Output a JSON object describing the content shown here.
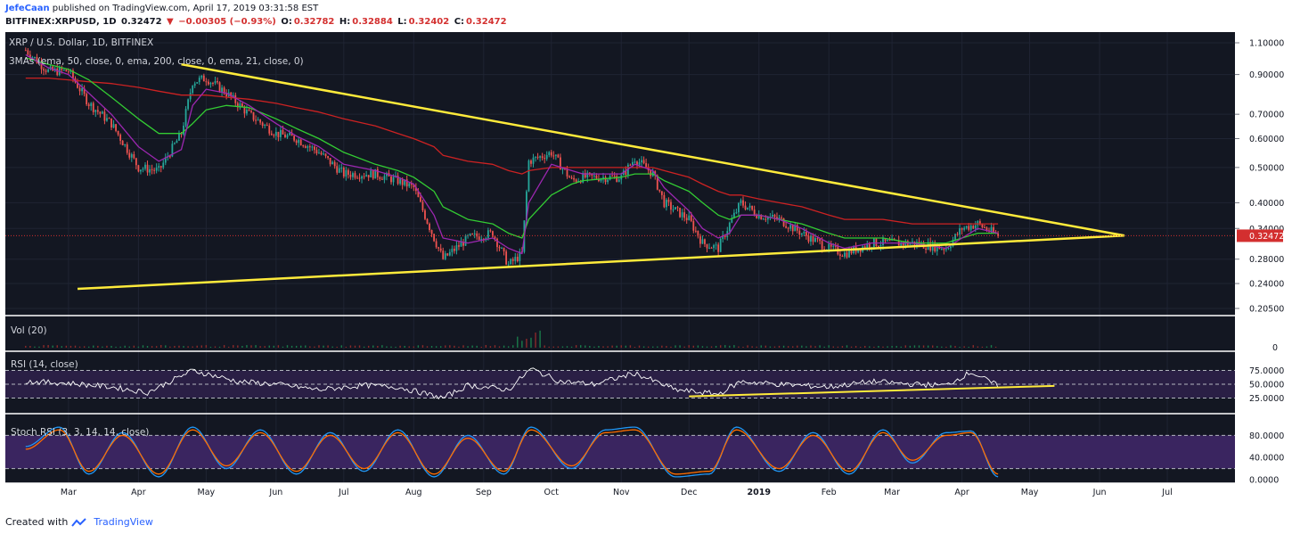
{
  "header": {
    "user": "JefeCaan",
    "published_text": "published on TradingView.com, April 17, 2019 03:31:58 EST",
    "symbol": "BITFINEX:XRPUSD, 1D",
    "last": "0.32472",
    "change_arrow": "▼",
    "change": "−0.00305 (−0.93%)",
    "o_label": "O:",
    "o_value": "0.32782",
    "h_label": "H:",
    "h_value": "0.32884",
    "l_label": "L:",
    "l_value": "0.32402",
    "c_label": "C:",
    "c_value": "0.32472"
  },
  "footer": {
    "created_with": "Created with",
    "brand": "TradingView"
  },
  "colors": {
    "background": "#131722",
    "rsi_band": "#2a1f45",
    "stoch_band": "#3a2560",
    "candle_up": "#26a69a",
    "candle_down": "#ef5350",
    "ema50": "#33cc33",
    "ema200": "#cc2222",
    "ema21": "#9c27b0",
    "trendline": "#ffeb3b",
    "rsi_line": "#ffffff",
    "stoch_k": "#2196f3",
    "stoch_d": "#ff6d00",
    "price_label": "#d32f2f"
  },
  "chart_data": {
    "type": "line",
    "price_pane": {
      "title": "XRP / U.S. Dollar, 1D, BITFINEX",
      "indicator_label": "3MAs (ema, 50, close, 0, ema, 200, close, 0, ema, 21, close, 0)",
      "scale": "log",
      "y_ticks": [
        "1.10000",
        "0.90000",
        "0.70000",
        "0.60000",
        "0.50000",
        "0.40000",
        "0.34000",
        "0.28000",
        "0.24000",
        "0.20500"
      ],
      "y_tick_values": [
        1.1,
        0.9,
        0.7,
        0.6,
        0.5,
        0.4,
        0.34,
        0.28,
        0.24,
        0.205
      ],
      "last_price_label": "0.32472",
      "last_price": 0.32472,
      "x_ticks": [
        "Mar",
        "Apr",
        "May",
        "Jun",
        "Jul",
        "Aug",
        "Sep",
        "Oct",
        "Nov",
        "Dec",
        "2019",
        "Feb",
        "Mar",
        "Apr",
        "May",
        "Jun",
        "Jul"
      ],
      "close_series": {
        "name": "XRPUSD close",
        "x": [
          "2018-02-10",
          "2018-02-20",
          "2018-03-01",
          "2018-03-10",
          "2018-03-20",
          "2018-04-01",
          "2018-04-10",
          "2018-04-20",
          "2018-04-25",
          "2018-05-01",
          "2018-05-10",
          "2018-05-20",
          "2018-06-01",
          "2018-06-10",
          "2018-06-20",
          "2018-07-01",
          "2018-07-15",
          "2018-07-25",
          "2018-08-01",
          "2018-08-10",
          "2018-08-14",
          "2018-08-25",
          "2018-09-05",
          "2018-09-12",
          "2018-09-18",
          "2018-09-21",
          "2018-10-01",
          "2018-10-10",
          "2018-10-15",
          "2018-11-01",
          "2018-11-07",
          "2018-11-15",
          "2018-11-20",
          "2018-12-01",
          "2018-12-07",
          "2018-12-14",
          "2018-12-19",
          "2018-12-24",
          "2019-01-01",
          "2019-01-10",
          "2019-01-20",
          "2019-02-01",
          "2019-02-08",
          "2019-02-20",
          "2019-02-25",
          "2019-03-10",
          "2019-03-25",
          "2019-04-01",
          "2019-04-08",
          "2019-04-17"
        ],
        "values": [
          1.05,
          0.92,
          0.92,
          0.75,
          0.66,
          0.5,
          0.49,
          0.62,
          0.86,
          0.88,
          0.8,
          0.7,
          0.62,
          0.6,
          0.55,
          0.48,
          0.48,
          0.46,
          0.44,
          0.32,
          0.28,
          0.32,
          0.33,
          0.27,
          0.29,
          0.52,
          0.55,
          0.46,
          0.47,
          0.47,
          0.53,
          0.48,
          0.4,
          0.36,
          0.31,
          0.3,
          0.35,
          0.4,
          0.37,
          0.36,
          0.33,
          0.3,
          0.29,
          0.31,
          0.31,
          0.31,
          0.3,
          0.34,
          0.35,
          0.32472
        ]
      },
      "ema50_values": [
        1.0,
        0.96,
        0.93,
        0.87,
        0.78,
        0.68,
        0.62,
        0.62,
        0.66,
        0.72,
        0.74,
        0.73,
        0.68,
        0.64,
        0.6,
        0.55,
        0.51,
        0.49,
        0.47,
        0.43,
        0.39,
        0.36,
        0.35,
        0.33,
        0.32,
        0.36,
        0.42,
        0.45,
        0.46,
        0.47,
        0.48,
        0.48,
        0.46,
        0.43,
        0.4,
        0.37,
        0.36,
        0.37,
        0.37,
        0.36,
        0.35,
        0.33,
        0.32,
        0.32,
        0.32,
        0.31,
        0.31,
        0.32,
        0.33,
        0.33
      ],
      "ema200_values": [
        0.88,
        0.88,
        0.87,
        0.86,
        0.85,
        0.83,
        0.81,
        0.79,
        0.79,
        0.79,
        0.78,
        0.77,
        0.75,
        0.73,
        0.71,
        0.68,
        0.65,
        0.62,
        0.6,
        0.57,
        0.54,
        0.52,
        0.51,
        0.49,
        0.48,
        0.49,
        0.5,
        0.5,
        0.5,
        0.5,
        0.5,
        0.5,
        0.49,
        0.47,
        0.45,
        0.43,
        0.42,
        0.42,
        0.41,
        0.4,
        0.39,
        0.37,
        0.36,
        0.36,
        0.36,
        0.35,
        0.35,
        0.35,
        0.35,
        0.35
      ],
      "ema21_values": [
        1.02,
        0.94,
        0.9,
        0.8,
        0.7,
        0.57,
        0.52,
        0.56,
        0.74,
        0.82,
        0.8,
        0.74,
        0.66,
        0.61,
        0.57,
        0.51,
        0.49,
        0.47,
        0.45,
        0.37,
        0.32,
        0.31,
        0.32,
        0.3,
        0.29,
        0.4,
        0.51,
        0.49,
        0.48,
        0.48,
        0.51,
        0.49,
        0.44,
        0.38,
        0.34,
        0.32,
        0.33,
        0.37,
        0.37,
        0.36,
        0.34,
        0.31,
        0.3,
        0.31,
        0.31,
        0.31,
        0.3,
        0.32,
        0.34,
        0.33
      ],
      "trendlines": [
        {
          "name": "upper",
          "x": [
            "2018-04-20",
            "2019-06-12"
          ],
          "y": [
            0.96,
            0.325
          ]
        },
        {
          "name": "lower",
          "x": [
            "2018-03-05",
            "2019-06-12"
          ],
          "y": [
            0.232,
            0.325
          ]
        }
      ]
    },
    "volume_pane": {
      "label": "Vol (20)",
      "y_ticks": [
        "0"
      ]
    },
    "rsi_pane": {
      "label": "RSI (14, close)",
      "y_ticks": [
        "75.0000",
        "50.0000",
        "25.0000"
      ],
      "y_tick_values": [
        75,
        50,
        25
      ],
      "x": [
        "2018-02-10",
        "2018-03-01",
        "2018-03-20",
        "2018-04-05",
        "2018-04-25",
        "2018-05-15",
        "2018-06-01",
        "2018-06-20",
        "2018-07-10",
        "2018-07-25",
        "2018-08-14",
        "2018-08-25",
        "2018-09-12",
        "2018-09-22",
        "2018-10-05",
        "2018-10-20",
        "2018-11-07",
        "2018-11-25",
        "2018-12-14",
        "2018-12-24",
        "2019-01-10",
        "2019-02-01",
        "2019-02-20",
        "2019-03-10",
        "2019-03-25",
        "2019-04-05",
        "2019-04-17"
      ],
      "values": [
        55,
        52,
        45,
        35,
        75,
        55,
        50,
        40,
        48,
        45,
        25,
        48,
        40,
        78,
        55,
        50,
        70,
        40,
        32,
        55,
        50,
        45,
        55,
        50,
        48,
        72,
        47
      ],
      "trendline": {
        "x": [
          "2018-12-01",
          "2019-05-12"
        ],
        "y": [
          28,
          47
        ]
      }
    },
    "stoch_rsi_pane": {
      "label": "Stoch RSI (3, 3, 14, 14, close)",
      "y_ticks": [
        "80.0000",
        "40.0000",
        "0.0000"
      ],
      "y_tick_values": [
        80,
        40,
        0
      ],
      "series": [
        {
          "name": "K",
          "x": [
            "2018-02-10",
            "2018-02-25",
            "2018-03-10",
            "2018-03-25",
            "2018-04-10",
            "2018-04-25",
            "2018-05-10",
            "2018-05-25",
            "2018-06-10",
            "2018-06-25",
            "2018-07-10",
            "2018-07-25",
            "2018-08-10",
            "2018-08-25",
            "2018-09-10",
            "2018-09-22",
            "2018-10-10",
            "2018-10-25",
            "2018-11-07",
            "2018-11-25",
            "2018-12-10",
            "2018-12-22",
            "2019-01-10",
            "2019-01-25",
            "2019-02-10",
            "2019-02-25",
            "2019-03-10",
            "2019-03-25",
            "2019-04-05",
            "2019-04-17"
          ],
          "values": [
            60,
            95,
            10,
            85,
            5,
            95,
            20,
            90,
            10,
            85,
            15,
            90,
            5,
            80,
            10,
            95,
            20,
            90,
            95,
            5,
            10,
            95,
            15,
            85,
            10,
            90,
            30,
            85,
            88,
            5
          ]
        },
        {
          "name": "D",
          "x": [
            "2018-02-10",
            "2018-02-25",
            "2018-03-10",
            "2018-03-25",
            "2018-04-10",
            "2018-04-25",
            "2018-05-10",
            "2018-05-25",
            "2018-06-10",
            "2018-06-25",
            "2018-07-10",
            "2018-07-25",
            "2018-08-10",
            "2018-08-25",
            "2018-09-10",
            "2018-09-22",
            "2018-10-10",
            "2018-10-25",
            "2018-11-07",
            "2018-11-25",
            "2018-12-10",
            "2018-12-22",
            "2019-01-10",
            "2019-01-25",
            "2019-02-10",
            "2019-02-25",
            "2019-03-10",
            "2019-03-25",
            "2019-04-05",
            "2019-04-17"
          ],
          "values": [
            55,
            90,
            15,
            80,
            10,
            90,
            25,
            85,
            15,
            80,
            20,
            85,
            10,
            75,
            15,
            90,
            25,
            85,
            90,
            10,
            15,
            90,
            20,
            80,
            15,
            85,
            35,
            80,
            85,
            10
          ]
        }
      ]
    }
  }
}
